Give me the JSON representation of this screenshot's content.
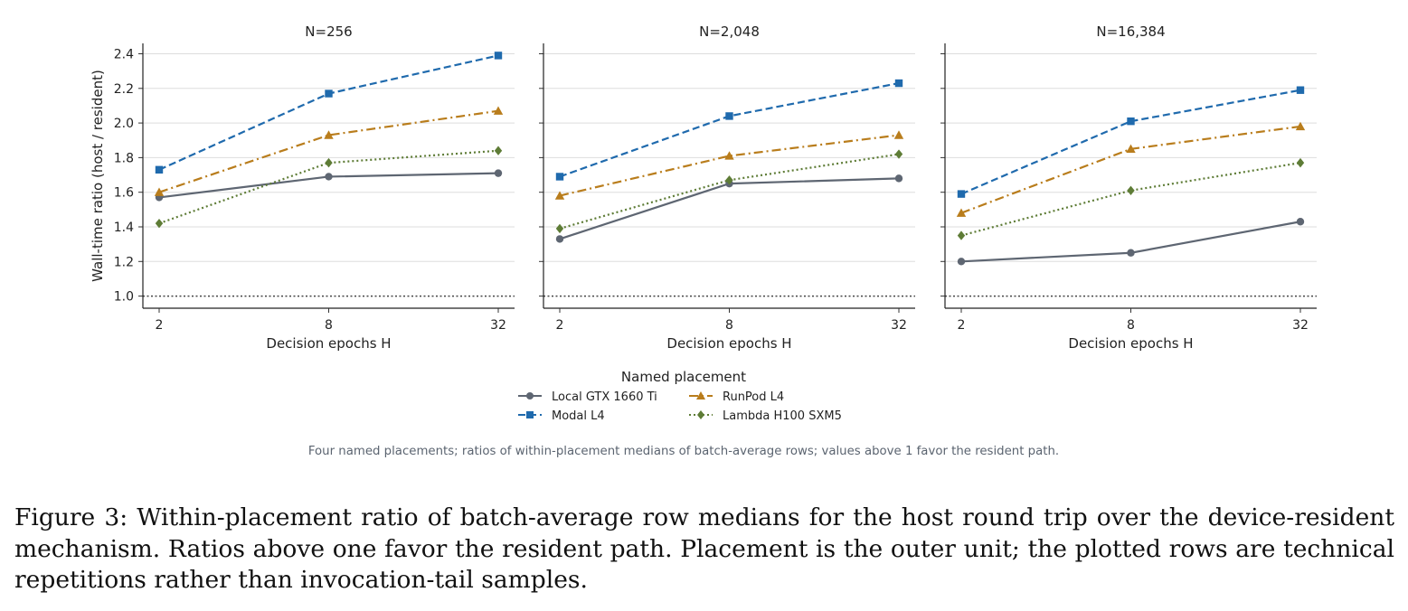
{
  "chart_data": {
    "type": "line",
    "x_categories": [
      "2",
      "8",
      "32"
    ],
    "xlabel": "Decision epochs H",
    "ylabel": "Wall-time ratio (host / resident)",
    "ylim": [
      0.93,
      2.46
    ],
    "yticks": [
      "1.0",
      "1.2",
      "1.4",
      "1.6",
      "1.8",
      "2.0",
      "2.2",
      "2.4"
    ],
    "reference_line": 1.0,
    "grid": "horizontal",
    "legend": {
      "title": "Named placement",
      "placement": "below",
      "entries": [
        "Local GTX 1660 Ti",
        "RunPod L4",
        "Modal L4",
        "Lambda H100 SXM5"
      ]
    },
    "series_style": [
      {
        "name": "Local GTX 1660 Ti",
        "color": "#5e6672",
        "dash": "solid",
        "marker": "circle"
      },
      {
        "name": "Modal L4",
        "color": "#1f6aad",
        "dash": "dashed",
        "marker": "square"
      },
      {
        "name": "RunPod L4",
        "color": "#b97d1c",
        "dash": "dashdot",
        "marker": "triangle"
      },
      {
        "name": "Lambda H100 SXM5",
        "color": "#5e7c36",
        "dash": "dotted",
        "marker": "diamond"
      }
    ],
    "panels": [
      {
        "title": "N=256",
        "series": [
          {
            "name": "Local GTX 1660 Ti",
            "values": [
              1.57,
              1.69,
              1.71
            ]
          },
          {
            "name": "Modal L4",
            "values": [
              1.73,
              2.17,
              2.39
            ]
          },
          {
            "name": "RunPod L4",
            "values": [
              1.6,
              1.93,
              2.07
            ]
          },
          {
            "name": "Lambda H100 SXM5",
            "values": [
              1.42,
              1.77,
              1.84
            ]
          }
        ]
      },
      {
        "title": "N=2,048",
        "series": [
          {
            "name": "Local GTX 1660 Ti",
            "values": [
              1.33,
              1.65,
              1.68
            ]
          },
          {
            "name": "Modal L4",
            "values": [
              1.69,
              2.04,
              2.23
            ]
          },
          {
            "name": "RunPod L4",
            "values": [
              1.58,
              1.81,
              1.93
            ]
          },
          {
            "name": "Lambda H100 SXM5",
            "values": [
              1.39,
              1.67,
              1.82
            ]
          }
        ]
      },
      {
        "title": "N=16,384",
        "series": [
          {
            "name": "Local GTX 1660 Ti",
            "values": [
              1.2,
              1.25,
              1.43
            ]
          },
          {
            "name": "Modal L4",
            "values": [
              1.59,
              2.01,
              2.19
            ]
          },
          {
            "name": "RunPod L4",
            "values": [
              1.48,
              1.85,
              1.98
            ]
          },
          {
            "name": "Lambda H100 SXM5",
            "values": [
              1.35,
              1.61,
              1.77
            ]
          }
        ]
      }
    ],
    "subcaption": "Four named placements; ratios of within-placement medians of batch-average rows; values above 1 favor the resident path."
  },
  "caption": "Figure 3: Within-placement ratio of batch-average row medians for the host round trip over the device-resident mechanism. Ratios above one favor the resident path. Placement is the outer unit; the plotted rows are technical repetitions rather than invocation-tail samples."
}
